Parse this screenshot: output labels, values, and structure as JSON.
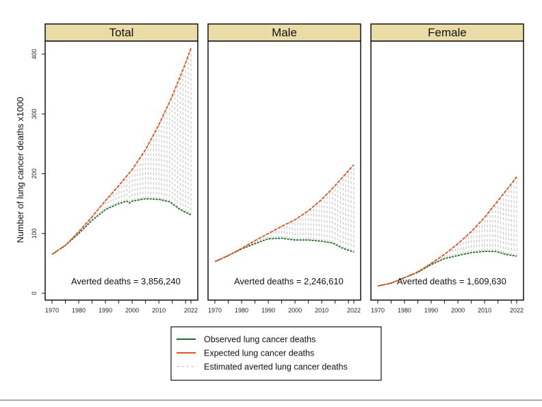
{
  "chart_data": [
    {
      "type": "line",
      "title": "Total",
      "ylabel": "Number of lung cancer deaths x1000",
      "xlim": [
        1970,
        2022
      ],
      "ylim": [
        0,
        400
      ],
      "xticks": [
        1970,
        1980,
        1990,
        2000,
        2010,
        2022
      ],
      "yticks": [
        0,
        100,
        200,
        300,
        400
      ],
      "annotation": "Averted deaths = 3,856,240",
      "series": [
        {
          "name": "Observed lung cancer deaths",
          "x": [
            1970,
            1975,
            1980,
            1985,
            1990,
            1995,
            1998,
            1999,
            2000,
            2005,
            2010,
            2014,
            2018,
            2022
          ],
          "y": [
            65,
            80,
            100,
            122,
            140,
            150,
            154,
            151,
            154,
            158,
            157,
            153,
            140,
            131
          ]
        },
        {
          "name": "Expected lung cancer deaths",
          "x": [
            1970,
            1975,
            1980,
            1985,
            1990,
            1995,
            2000,
            2005,
            2010,
            2015,
            2020,
            2022
          ],
          "y": [
            65,
            80,
            103,
            128,
            155,
            180,
            207,
            240,
            282,
            330,
            385,
            410
          ]
        }
      ]
    },
    {
      "type": "line",
      "title": "Male",
      "xlim": [
        1970,
        2022
      ],
      "ylim": [
        0,
        400
      ],
      "xticks": [
        1970,
        1980,
        1990,
        2000,
        2010,
        2022
      ],
      "annotation": "Averted deaths = 2,246,610",
      "series": [
        {
          "name": "Observed lung cancer deaths",
          "x": [
            1970,
            1975,
            1980,
            1985,
            1990,
            1995,
            2000,
            2005,
            2010,
            2014,
            2018,
            2022
          ],
          "y": [
            53,
            63,
            74,
            83,
            91,
            92,
            89,
            89,
            87,
            84,
            75,
            69
          ]
        },
        {
          "name": "Expected lung cancer deaths",
          "x": [
            1970,
            1975,
            1980,
            1985,
            1990,
            1995,
            2000,
            2005,
            2010,
            2015,
            2020,
            2022
          ],
          "y": [
            53,
            63,
            75,
            88,
            100,
            112,
            123,
            138,
            157,
            180,
            205,
            215
          ]
        }
      ]
    },
    {
      "type": "line",
      "title": "Female",
      "xlim": [
        1970,
        2022
      ],
      "ylim": [
        0,
        400
      ],
      "xticks": [
        1970,
        1980,
        1990,
        2000,
        2010,
        2022
      ],
      "annotation": "Averted deaths = 1,609,630",
      "series": [
        {
          "name": "Observed lung cancer deaths",
          "x": [
            1970,
            1975,
            1980,
            1985,
            1990,
            1995,
            2000,
            2005,
            2010,
            2014,
            2018,
            2022
          ],
          "y": [
            12,
            17,
            26,
            35,
            48,
            58,
            63,
            68,
            70,
            70,
            65,
            62
          ]
        },
        {
          "name": "Expected lung cancer deaths",
          "x": [
            1970,
            1975,
            1980,
            1985,
            1990,
            1995,
            2000,
            2005,
            2010,
            2015,
            2020,
            2022
          ],
          "y": [
            12,
            17,
            26,
            36,
            50,
            65,
            83,
            103,
            127,
            155,
            183,
            195
          ]
        }
      ]
    }
  ],
  "legend": {
    "position": "bottom-center",
    "items": [
      {
        "label": "Observed lung cancer deaths",
        "color": "#1f6b1f",
        "style": "solid"
      },
      {
        "label": "Expected lung cancer deaths",
        "color": "#e0521f",
        "style": "solid"
      },
      {
        "label": "Estimated averted lung cancer deaths",
        "color": "#c8c8c8",
        "style": "dashed"
      }
    ]
  },
  "colors": {
    "strip": "#e9dca7",
    "observed": "#1f6b1f",
    "expected": "#e0521f",
    "averted": "#c8c8c8"
  }
}
